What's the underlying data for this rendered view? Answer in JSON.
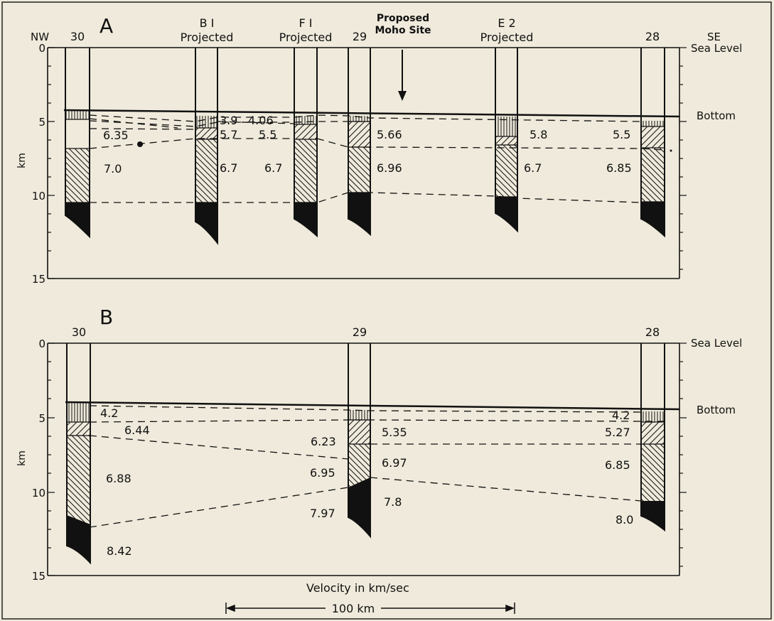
{
  "panels": [
    {
      "letter": "A",
      "left_dir": "NW",
      "right_dir": "SE",
      "sea_level": "Sea Level",
      "bottom": "Bottom",
      "ylabel": "km",
      "ticks": [
        "0",
        "5",
        "10",
        "15"
      ],
      "arrow_label": [
        "Proposed",
        "Moho Site"
      ],
      "stations": [
        {
          "id": "30",
          "header": [
            "30"
          ]
        },
        {
          "id": "B1",
          "header": [
            "B I",
            "Projected"
          ]
        },
        {
          "id": "F1",
          "header": [
            "F I",
            "Projected"
          ]
        },
        {
          "id": "29",
          "header": [
            "29"
          ]
        },
        {
          "id": "E2",
          "header": [
            "E 2",
            "Projected"
          ]
        },
        {
          "id": "28",
          "header": [
            "28"
          ]
        }
      ],
      "velocities": [
        "6.35",
        "7.0",
        "3.9",
        "4.06",
        "5.7",
        "5.5",
        "6.7",
        "6.7",
        "5.66",
        "6.96",
        "5.8",
        "6.7",
        "5.5",
        "6.85"
      ]
    },
    {
      "letter": "B",
      "sea_level": "Sea Level",
      "bottom": "Bottom",
      "ylabel": "km",
      "ticks": [
        "0",
        "5",
        "10",
        "15"
      ],
      "stations": [
        {
          "id": "30",
          "header": [
            "30"
          ]
        },
        {
          "id": "29",
          "header": [
            "29"
          ]
        },
        {
          "id": "28",
          "header": [
            "28"
          ]
        }
      ],
      "velocities": [
        "4.2",
        "6.44",
        "6.88",
        "8.42",
        "6.23",
        "6.95",
        "7.97",
        "5.35",
        "6.97",
        "7.8",
        "4.2",
        "5.27",
        "6.85",
        "8.0"
      ]
    }
  ],
  "velocity_caption": "Velocity in km/sec",
  "scale_label": "100 km"
}
